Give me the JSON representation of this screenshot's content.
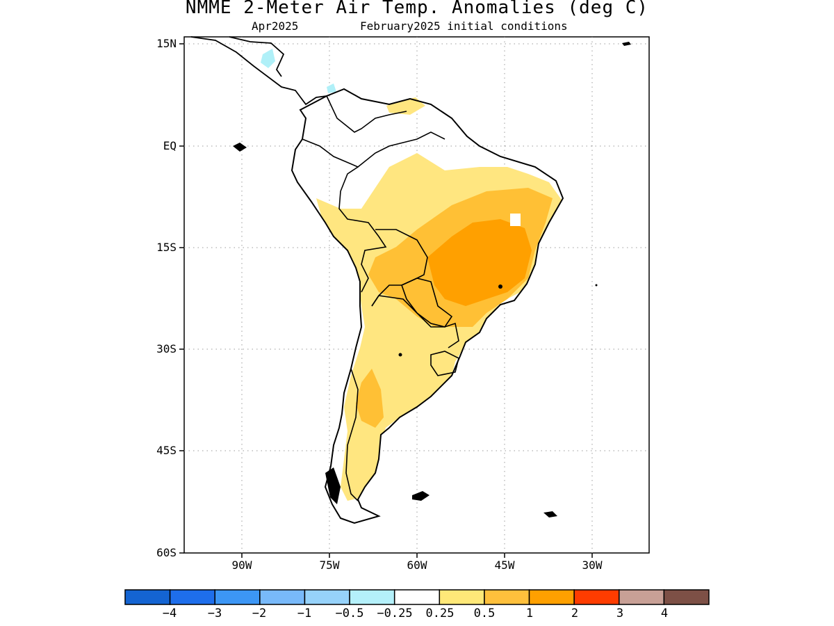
{
  "header": {
    "title": "NMME 2-Meter Air Temp. Anomalies (deg C)",
    "target_month": "Apr2025",
    "initial_conditions": "February2025 initial conditions"
  },
  "map": {
    "region": "South America",
    "lat_labels": [
      "15N",
      "EQ",
      "15S",
      "30S",
      "45S",
      "60S"
    ],
    "lon_labels": [
      "90W",
      "75W",
      "60W",
      "45W",
      "30W"
    ],
    "lat_range": [
      -60,
      15
    ],
    "lon_range": [
      -100,
      -20
    ],
    "gridlines": true,
    "anomaly_regions": [
      {
        "category": "0.25 to 0.5",
        "color": "#ffe680",
        "area": "Amazon basin, Peru, Bolivia, western Argentina, Patagonia"
      },
      {
        "category": "0.5 to 1",
        "color": "#ffc035",
        "area": "central Brazil, eastern Bolivia, Paraguay, central-west Argentina"
      },
      {
        "category": "1 to 2",
        "color": "#ffa000",
        "area": "south-central and eastern Brazil"
      },
      {
        "category": "-0.5 to -0.25",
        "color": "#b0f0f8",
        "area": "small patches over Central America and northern Colombia"
      }
    ]
  },
  "colorbar": {
    "tick_labels": [
      "-4",
      "-3",
      "-2",
      "-1",
      "-0.5",
      "-0.25",
      "0.25",
      "0.5",
      "1",
      "2",
      "3",
      "4"
    ],
    "colors": [
      "#1464d2",
      "#1e6eeb",
      "#3c96f5",
      "#78b9fa",
      "#96d2fa",
      "#b4f0fa",
      "#ffffff",
      "#ffe878",
      "#ffc03c",
      "#ffa000",
      "#ff3c00",
      "#c8a096",
      "#7d5046"
    ]
  }
}
